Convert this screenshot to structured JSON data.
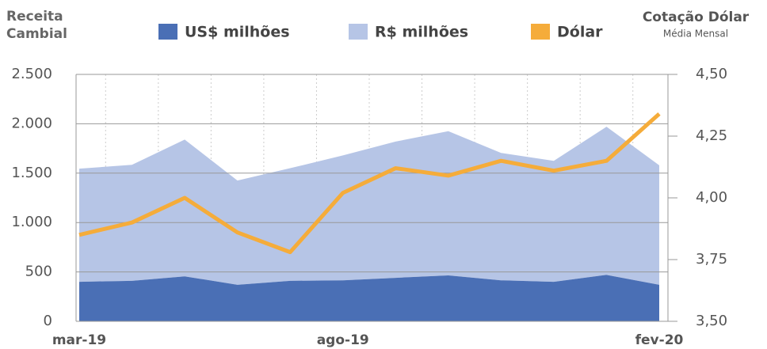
{
  "chart_data": {
    "type": "stacked_area_line",
    "y_label": "Receita Cambial",
    "y2_label": "Cotação Dólar",
    "y2_sublabel": "Média Mensal",
    "categories": [
      "mar-19",
      null,
      null,
      null,
      null,
      "ago-19",
      null,
      null,
      null,
      null,
      null,
      "fev-20"
    ],
    "series": [
      {
        "name": "US$ milhões",
        "color": "#4a6fb5",
        "values": [
          400,
          410,
          455,
          370,
          410,
          415,
          440,
          465,
          415,
          400,
          470,
          370
        ]
      },
      {
        "name": "R$ milhões",
        "color": "#b6c5e6",
        "values": [
          1145,
          1175,
          1385,
          1055,
          1140,
          1265,
          1380,
          1460,
          1290,
          1225,
          1500,
          1210
        ]
      },
      {
        "name": "Dólar",
        "color": "#f5ac3a",
        "axis": "y2",
        "values": [
          3.85,
          3.9,
          4.0,
          3.86,
          3.78,
          4.02,
          4.12,
          4.09,
          4.15,
          4.11,
          4.15,
          4.34
        ]
      }
    ],
    "ylim": [
      0,
      2500
    ],
    "yticks": [
      0,
      500,
      {
        "value": 1000,
        "label": "1.000"
      },
      {
        "value": 1500,
        "label": "1.500"
      },
      {
        "value": 2000,
        "label": "2.000"
      },
      {
        "value": 2500,
        "label": "2.500"
      }
    ],
    "y2lim": [
      3.5,
      4.5
    ],
    "y2ticks": [
      {
        "value": 3.5,
        "label": "3,50"
      },
      {
        "value": 3.75,
        "label": "3,75"
      },
      {
        "value": 4.0,
        "label": "4,00"
      },
      {
        "value": 4.25,
        "label": "4,25"
      },
      {
        "value": 4.5,
        "label": "4,50"
      }
    ],
    "grid": true
  }
}
